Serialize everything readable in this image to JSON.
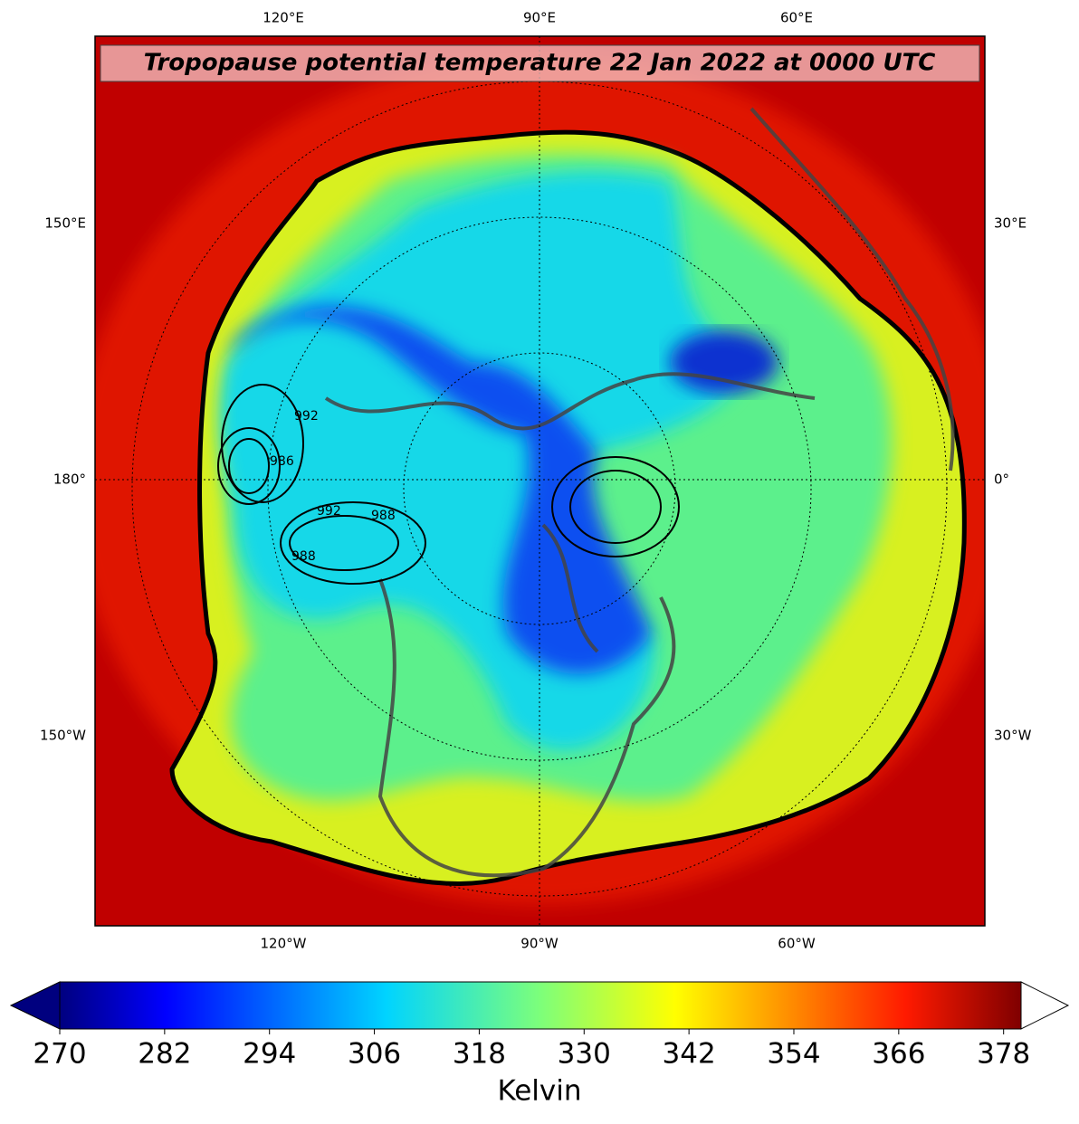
{
  "title": "Tropopause potential temperature 22 Jan 2022 at 0000 UTC",
  "map": {
    "top_labels": [
      "120°E",
      "90°E",
      "60°E"
    ],
    "bottom_labels": [
      "120°W",
      "90°W",
      "60°W"
    ],
    "left_labels": [
      "150°E",
      "180°",
      "150°W"
    ],
    "right_labels": [
      "30°E",
      "0°",
      "30°W"
    ],
    "contour_labels": [
      "992",
      "986",
      "992",
      "988",
      "988"
    ]
  },
  "colorbar": {
    "label": "Kelvin",
    "lim": [
      270,
      380
    ],
    "ticks": [
      270,
      282,
      294,
      306,
      318,
      330,
      342,
      354,
      366,
      378
    ]
  }
}
